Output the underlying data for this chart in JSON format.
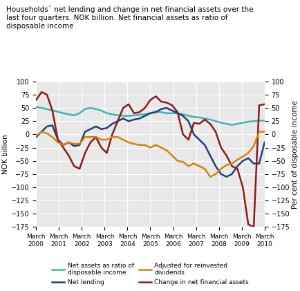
{
  "title": "Households` net lending and change in net financial assets over the\nlast four quarters. NOK billion. Net financial assets as ratio of\ndisposable income",
  "ylabel_left": "NOK billion",
  "ylabel_right": "Per cent of disposable income",
  "ylim": [
    -175,
    100
  ],
  "yticks": [
    -175,
    -150,
    -125,
    -100,
    -75,
    -50,
    -25,
    0,
    25,
    50,
    75,
    100
  ],
  "x_labels": [
    "March\n2000",
    "March\n2001",
    "March\n2002",
    "March\n2003",
    "March\n2004",
    "March\n2005",
    "March\n2006",
    "March\n2007",
    "March\n2008",
    "March\n2009",
    "March\n2010"
  ],
  "x_values": [
    0,
    1,
    2,
    3,
    4,
    5,
    6,
    7,
    8,
    9,
    10
  ],
  "net_assets": {
    "color": "#3ab5b0",
    "label": "Net assets as ratio of\ndisposable income",
    "data": [
      52,
      50,
      48,
      45,
      43,
      40,
      38,
      36,
      40,
      48,
      50,
      48,
      45,
      40,
      38,
      36,
      35,
      35,
      36,
      37,
      38,
      40,
      43,
      42,
      40,
      40,
      40,
      38,
      35,
      33,
      32,
      30,
      28,
      25,
      22,
      20,
      18,
      20,
      22,
      24,
      25,
      26,
      26
    ]
  },
  "net_lending": {
    "color": "#1f3f7a",
    "label": "Net lending",
    "data": [
      -5,
      5,
      15,
      17,
      -10,
      -20,
      -15,
      -22,
      -20,
      5,
      10,
      15,
      10,
      12,
      20,
      25,
      30,
      25,
      28,
      30,
      35,
      40,
      42,
      48,
      50,
      45,
      40,
      35,
      25,
      0,
      -10,
      -20,
      -40,
      -60,
      -75,
      -80,
      -75,
      -60,
      -50,
      -45,
      -55,
      -55,
      -15
    ]
  },
  "change_net_financial": {
    "color": "#8b1a1a",
    "label": "Change in net financial assets",
    "data": [
      65,
      80,
      75,
      45,
      -10,
      -25,
      -40,
      -60,
      -65,
      -35,
      -15,
      -5,
      -25,
      -35,
      0,
      25,
      50,
      57,
      40,
      42,
      50,
      65,
      72,
      62,
      60,
      55,
      42,
      0,
      -10,
      22,
      20,
      28,
      20,
      5,
      -25,
      -40,
      -60,
      -65,
      -100,
      -170,
      -175,
      55,
      57
    ]
  },
  "adjusted": {
    "color": "#d4820a",
    "label": "Adjusted for reinvested\ndividends",
    "data": [
      -3,
      5,
      2,
      -5,
      -15,
      -20,
      -15,
      -18,
      -18,
      -5,
      -5,
      -5,
      -10,
      -10,
      -5,
      -5,
      -10,
      -15,
      -18,
      -20,
      -20,
      -25,
      -20,
      -25,
      -30,
      -40,
      -50,
      -52,
      -60,
      -55,
      -60,
      -65,
      -80,
      -75,
      -65,
      -58,
      -55,
      -48,
      -42,
      -35,
      -22,
      5,
      5
    ]
  },
  "background_color": "#e8e8e8",
  "grid_color": "#ffffff"
}
